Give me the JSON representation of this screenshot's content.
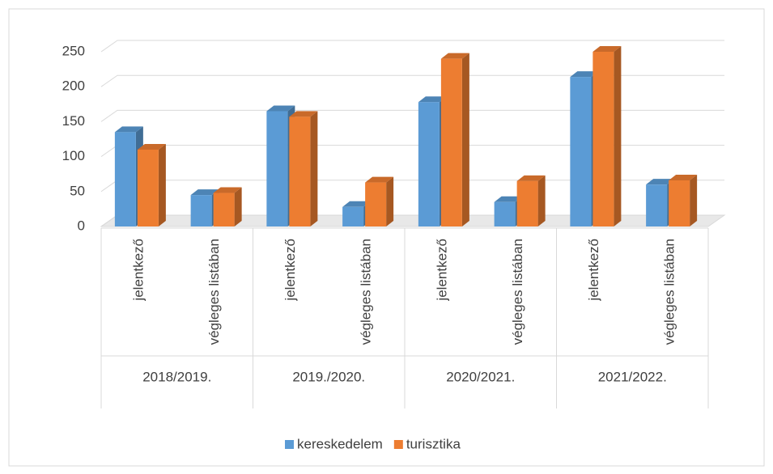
{
  "chart_data": {
    "type": "bar3d",
    "groups": [
      "2018/2019.",
      "2019./2020.",
      "2020/2021.",
      "2021/2022."
    ],
    "categories": [
      "jelentkező",
      "végleges listában",
      "jelentkező",
      "végleges listában",
      "jelentkező",
      "végleges listában",
      "jelentkező",
      "végleges listában"
    ],
    "series": [
      {
        "name": "kereskedelem",
        "color": "#5b9bd5",
        "values": [
          135,
          45,
          165,
          28,
          178,
          35,
          214,
          60
        ]
      },
      {
        "name": "turisztika",
        "color": "#ed7d31",
        "values": [
          110,
          48,
          157,
          63,
          240,
          65,
          250,
          66
        ]
      }
    ],
    "ylim": [
      0,
      250
    ],
    "yticks": [
      0,
      50,
      100,
      150,
      200,
      250
    ],
    "grid": true,
    "legend": "bottom"
  }
}
